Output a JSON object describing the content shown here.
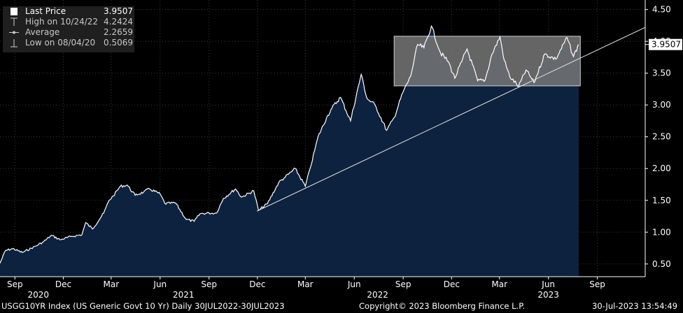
{
  "legend": {
    "rows": [
      {
        "label": "Last Price",
        "value": "3.9507"
      },
      {
        "label": "High on 10/24/22",
        "value": "4.2424"
      },
      {
        "label": "Average",
        "value": "2.2659"
      },
      {
        "label": "Low on 08/04/20",
        "value": "0.5069"
      }
    ]
  },
  "footer": {
    "left": "USGG10YR Index (US Generic Govt 10 Yr)  Daily 30JUL2022-30JUL2023",
    "center": "Copyright© 2023 Bloomberg Finance L.P.",
    "right": "30-Jul-2023 13:54:49"
  },
  "colors": {
    "background": "#000000",
    "area_fill": "#0d223f",
    "line": "#ffffff",
    "band_fill": "#777777",
    "band_border": "#d0d0d0",
    "label_box": "#ffffff"
  },
  "chart_data": {
    "type": "area",
    "x_range": [
      "2020-08-04",
      "2023-11-30"
    ],
    "ylim": [
      0.3,
      4.65
    ],
    "y_ticks": [
      "0.50",
      "1.00",
      "1.50",
      "2.00",
      "2.50",
      "3.00",
      "3.50",
      "4.00",
      "4.50"
    ],
    "x_month_ticks": [
      {
        "date": "2020-09-01",
        "label": "Sep"
      },
      {
        "date": "2020-12-01",
        "label": "Dec"
      },
      {
        "date": "2021-03-01",
        "label": "Mar"
      },
      {
        "date": "2021-06-01",
        "label": "Jun"
      },
      {
        "date": "2021-09-01",
        "label": "Sep"
      },
      {
        "date": "2021-12-01",
        "label": "Dec"
      },
      {
        "date": "2022-03-01",
        "label": "Mar"
      },
      {
        "date": "2022-06-01",
        "label": "Jun"
      },
      {
        "date": "2022-09-01",
        "label": "Sep"
      },
      {
        "date": "2022-12-01",
        "label": "Dec"
      },
      {
        "date": "2023-03-01",
        "label": "Mar"
      },
      {
        "date": "2023-06-01",
        "label": "Jun"
      },
      {
        "date": "2023-09-01",
        "label": "Sep"
      }
    ],
    "x_year_ticks": [
      {
        "date": "2020-10-15",
        "label": "2020"
      },
      {
        "date": "2021-07-15",
        "label": "2021"
      },
      {
        "date": "2022-07-15",
        "label": "2022"
      },
      {
        "date": "2023-06-01",
        "label": "2023"
      }
    ],
    "last_price_label": "3.9507",
    "series": [
      {
        "name": "Last Price",
        "points": [
          [
            "2020-08-04",
            0.51
          ],
          [
            "2020-08-14",
            0.71
          ],
          [
            "2020-08-28",
            0.74
          ],
          [
            "2020-09-15",
            0.68
          ],
          [
            "2020-10-10",
            0.78
          ],
          [
            "2020-10-25",
            0.85
          ],
          [
            "2020-11-09",
            0.95
          ],
          [
            "2020-11-25",
            0.88
          ],
          [
            "2020-12-15",
            0.93
          ],
          [
            "2021-01-05",
            0.96
          ],
          [
            "2021-01-12",
            1.15
          ],
          [
            "2021-01-25",
            1.05
          ],
          [
            "2021-02-15",
            1.3
          ],
          [
            "2021-02-25",
            1.5
          ],
          [
            "2021-03-05",
            1.57
          ],
          [
            "2021-03-18",
            1.72
          ],
          [
            "2021-03-31",
            1.74
          ],
          [
            "2021-04-15",
            1.58
          ],
          [
            "2021-05-01",
            1.63
          ],
          [
            "2021-05-12",
            1.68
          ],
          [
            "2021-06-01",
            1.6
          ],
          [
            "2021-06-10",
            1.45
          ],
          [
            "2021-06-30",
            1.46
          ],
          [
            "2021-07-20",
            1.2
          ],
          [
            "2021-08-04",
            1.17
          ],
          [
            "2021-08-15",
            1.29
          ],
          [
            "2021-09-01",
            1.3
          ],
          [
            "2021-09-15",
            1.3
          ],
          [
            "2021-09-28",
            1.53
          ],
          [
            "2021-10-21",
            1.68
          ],
          [
            "2021-11-01",
            1.55
          ],
          [
            "2021-11-24",
            1.65
          ],
          [
            "2021-12-03",
            1.34
          ],
          [
            "2021-12-20",
            1.45
          ],
          [
            "2022-01-10",
            1.78
          ],
          [
            "2022-01-20",
            1.85
          ],
          [
            "2022-02-10",
            2.0
          ],
          [
            "2022-03-01",
            1.72
          ],
          [
            "2022-03-10",
            2.0
          ],
          [
            "2022-03-25",
            2.5
          ],
          [
            "2022-04-10",
            2.8
          ],
          [
            "2022-04-20",
            2.95
          ],
          [
            "2022-05-06",
            3.12
          ],
          [
            "2022-05-25",
            2.75
          ],
          [
            "2022-06-14",
            3.48
          ],
          [
            "2022-06-25",
            3.1
          ],
          [
            "2022-07-10",
            3.0
          ],
          [
            "2022-08-01",
            2.6
          ],
          [
            "2022-08-15",
            2.8
          ],
          [
            "2022-08-31",
            3.19
          ],
          [
            "2022-09-15",
            3.45
          ],
          [
            "2022-09-28",
            3.95
          ],
          [
            "2022-10-10",
            3.9
          ],
          [
            "2022-10-24",
            4.24
          ],
          [
            "2022-11-10",
            3.82
          ],
          [
            "2022-11-25",
            3.68
          ],
          [
            "2022-12-07",
            3.42
          ],
          [
            "2022-12-20",
            3.68
          ],
          [
            "2022-12-30",
            3.88
          ],
          [
            "2023-01-19",
            3.38
          ],
          [
            "2023-02-02",
            3.39
          ],
          [
            "2023-02-15",
            3.8
          ],
          [
            "2023-03-02",
            4.07
          ],
          [
            "2023-03-10",
            3.7
          ],
          [
            "2023-03-20",
            3.45
          ],
          [
            "2023-04-06",
            3.29
          ],
          [
            "2023-04-20",
            3.55
          ],
          [
            "2023-05-05",
            3.35
          ],
          [
            "2023-05-25",
            3.8
          ],
          [
            "2023-06-15",
            3.72
          ],
          [
            "2023-07-06",
            4.06
          ],
          [
            "2023-07-18",
            3.76
          ],
          [
            "2023-07-28",
            3.95
          ]
        ]
      }
    ],
    "annotations": [
      {
        "type": "trendline",
        "from": [
          "2021-11-30",
          1.33
        ],
        "to": [
          "2023-11-30",
          4.22
        ]
      },
      {
        "type": "range_box",
        "x": [
          "2022-08-15",
          "2023-07-31"
        ],
        "y": [
          3.3,
          4.08
        ]
      }
    ]
  }
}
